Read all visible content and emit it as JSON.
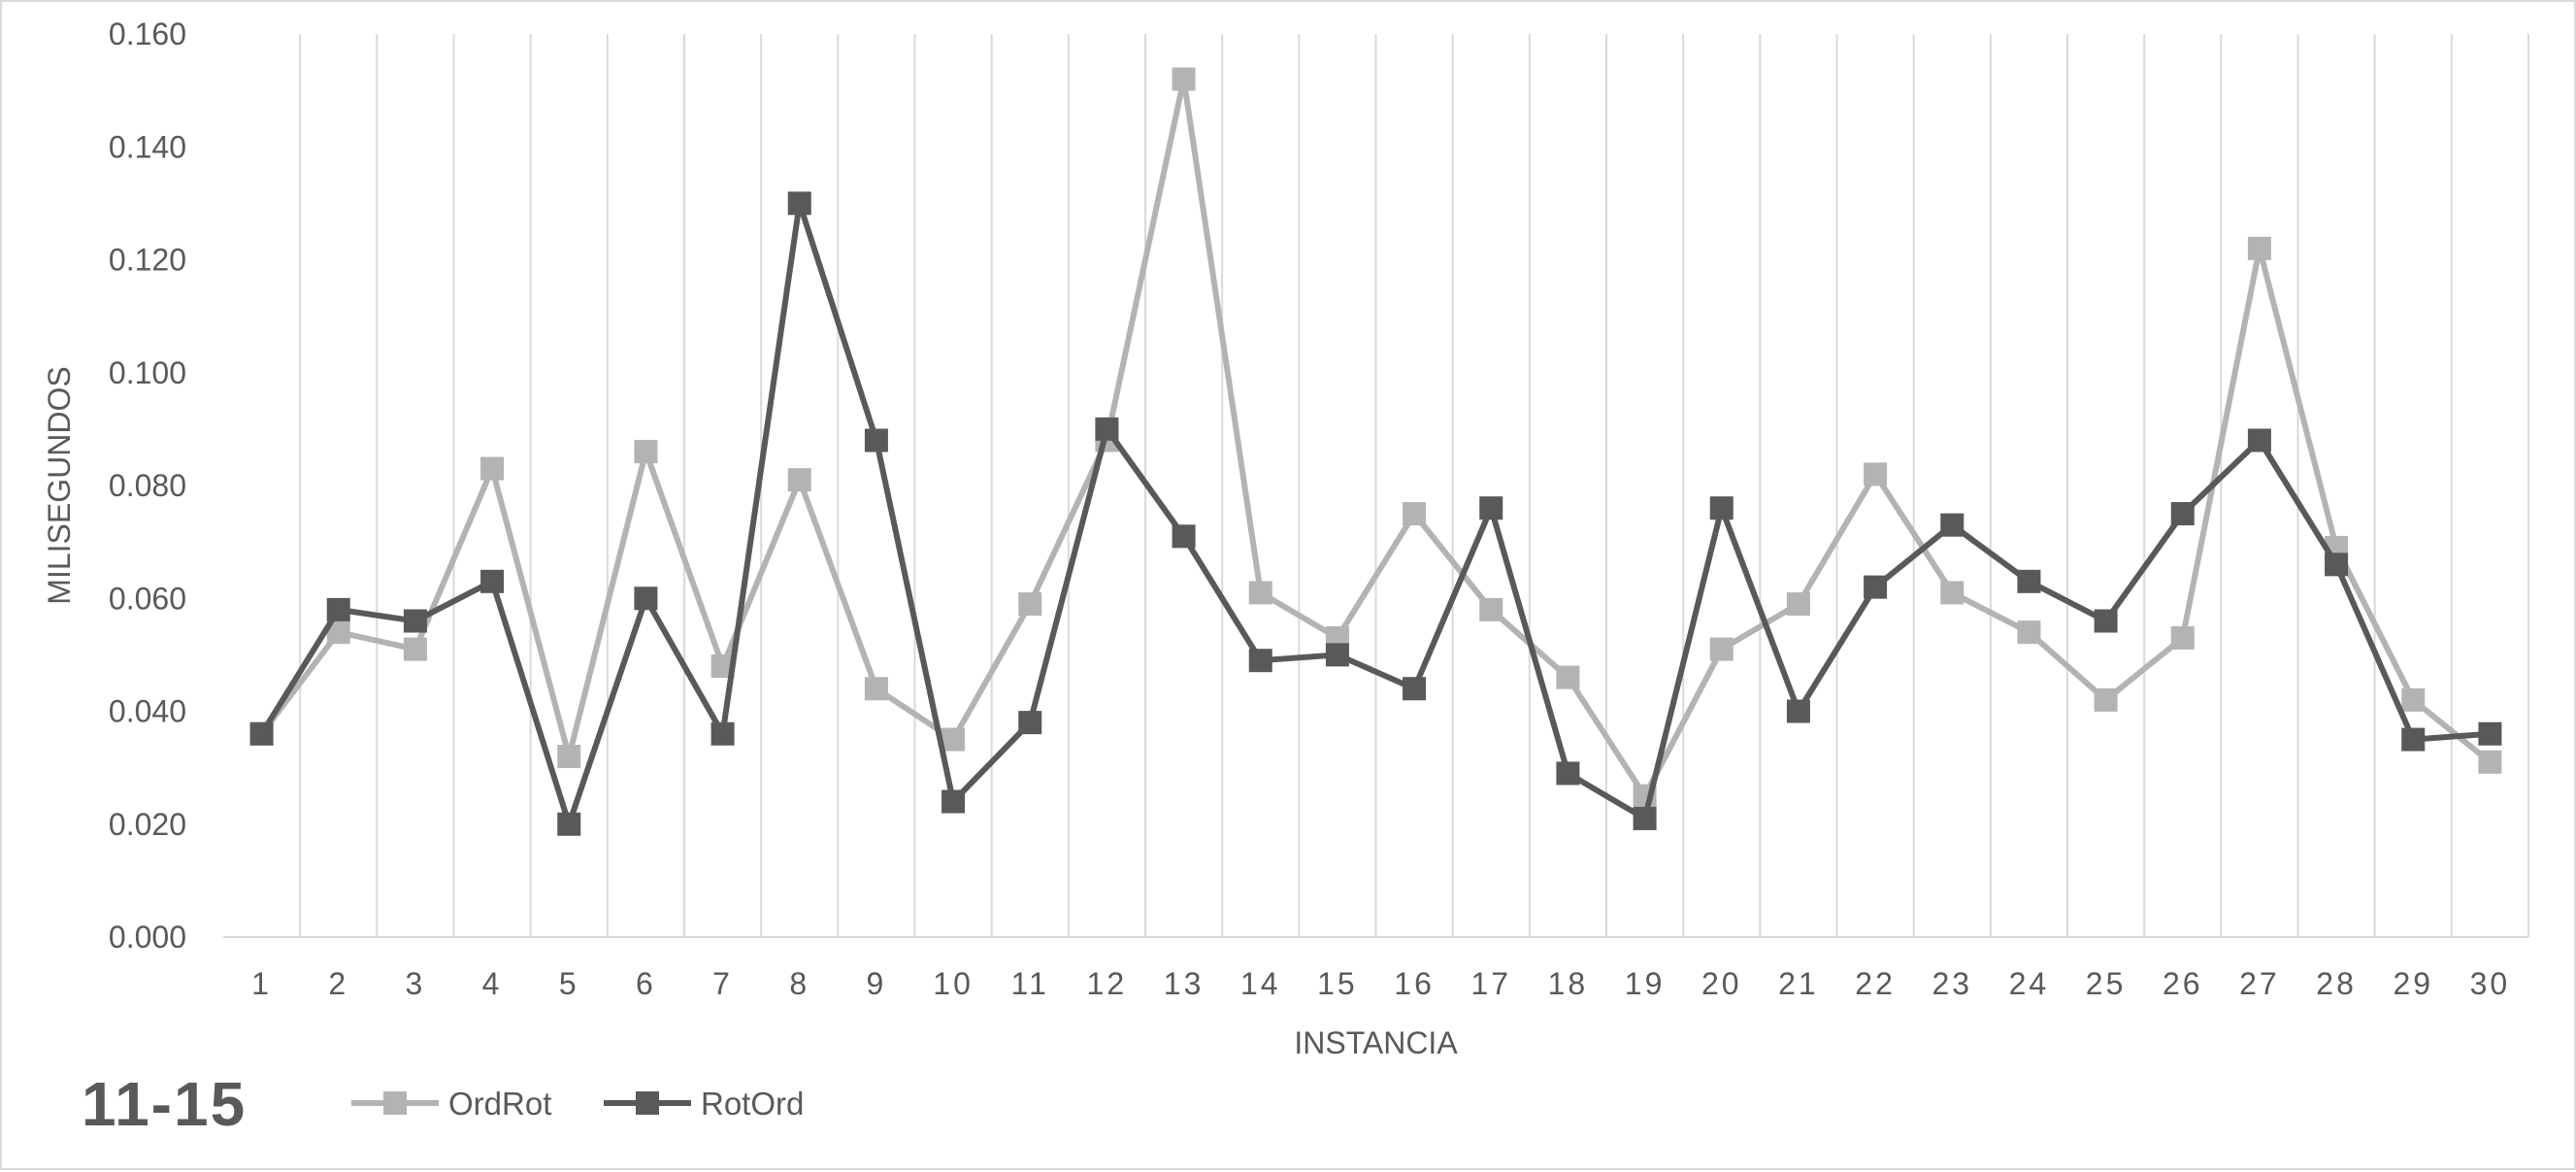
{
  "chart_data": {
    "type": "line",
    "title": "11-15",
    "xlabel": "INSTANCIA",
    "ylabel": "MILISEGUNDOS",
    "ylim": [
      0,
      0.16
    ],
    "yticks": [
      "0.000",
      "0.020",
      "0.040",
      "0.060",
      "0.080",
      "0.100",
      "0.120",
      "0.140",
      "0.160"
    ],
    "categories": [
      "1",
      "2",
      "3",
      "4",
      "5",
      "6",
      "7",
      "8",
      "9",
      "10",
      "11",
      "12",
      "13",
      "14",
      "15",
      "16",
      "17",
      "18",
      "19",
      "20",
      "21",
      "22",
      "23",
      "24",
      "25",
      "26",
      "27",
      "28",
      "29",
      "30"
    ],
    "grid": "vertical",
    "legend": "bottom-left",
    "series": [
      {
        "name": "OrdRot",
        "color": "#b3b3b3",
        "marker": "square",
        "values": [
          0.036,
          0.054,
          0.051,
          0.083,
          0.032,
          0.086,
          0.048,
          0.081,
          0.044,
          0.035,
          0.059,
          0.088,
          0.152,
          0.061,
          0.053,
          0.075,
          0.058,
          0.046,
          0.025,
          0.051,
          0.059,
          0.082,
          0.061,
          0.054,
          0.042,
          0.053,
          0.122,
          0.069,
          0.042,
          0.031
        ]
      },
      {
        "name": "RotOrd",
        "color": "#595959",
        "marker": "square",
        "values": [
          0.036,
          0.058,
          0.056,
          0.063,
          0.02,
          0.06,
          0.036,
          0.13,
          0.088,
          0.024,
          0.038,
          0.09,
          0.071,
          0.049,
          0.05,
          0.044,
          0.076,
          0.029,
          0.021,
          0.076,
          0.04,
          0.062,
          0.073,
          0.063,
          0.056,
          0.075,
          0.088,
          0.066,
          0.035,
          0.036
        ]
      }
    ]
  }
}
